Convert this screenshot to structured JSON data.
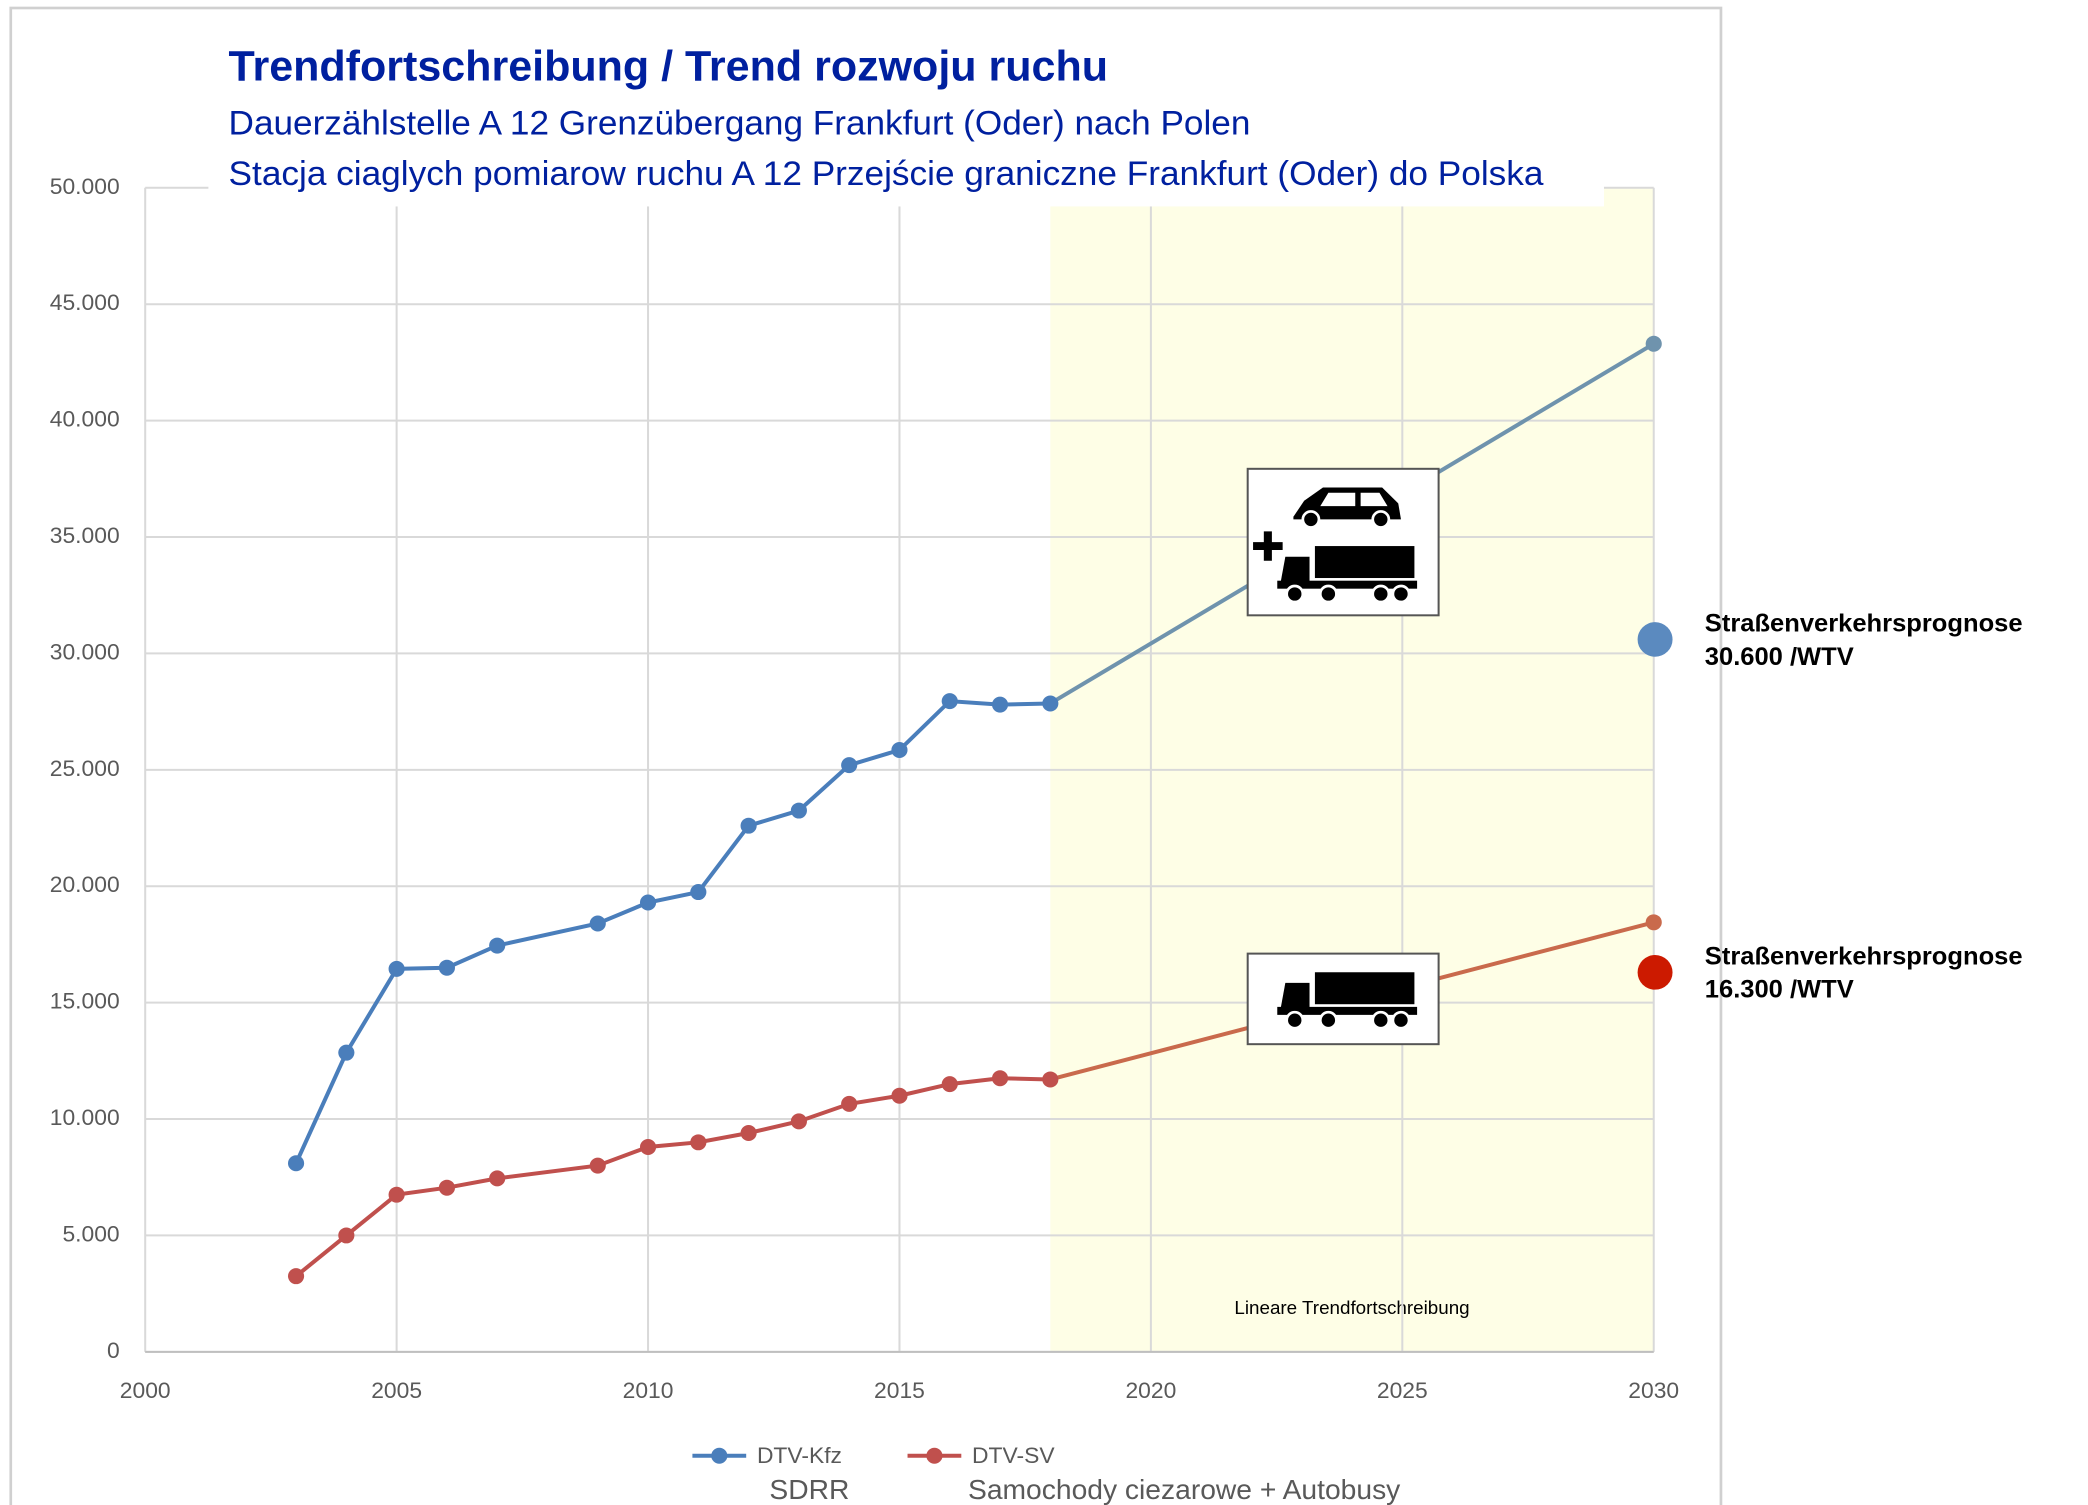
{
  "chart_data": {
    "type": "line",
    "title": "Trendfortschreibung / Trend rozwoju ruchu",
    "subtitle": [
      "Dauerzählstelle A 12 Grenzübergang Frankfurt (Oder) nach Polen",
      "Stacja ciaglych pomiarow ruchu A 12 Przejście graniczne Frankfurt (Oder) do Polska"
    ],
    "x": [
      2003,
      2004,
      2005,
      2006,
      2007,
      2009,
      2010,
      2011,
      2012,
      2013,
      2014,
      2015,
      2016,
      2017,
      2018,
      2030
    ],
    "series": [
      {
        "name": "DTV-Kfz",
        "sublabel": "SDRR",
        "color": "#4a7ebb",
        "trend_color": "#6f93ad",
        "values": [
          8100,
          12850,
          16450,
          16500,
          17450,
          18400,
          19300,
          19750,
          22600,
          23250,
          25200,
          25850,
          27950,
          27800,
          27850,
          43300
        ]
      },
      {
        "name": "DTV-SV",
        "sublabel": "Samochody ciezarowe + Autobusy",
        "color": "#c0504d",
        "trend_color": "#c96a4c",
        "values": [
          3250,
          5000,
          6750,
          7050,
          7450,
          8000,
          8800,
          9000,
          9400,
          9900,
          10650,
          11000,
          11500,
          11750,
          11700,
          18450
        ]
      }
    ],
    "forecast_region": {
      "range": [
        2018,
        2030
      ],
      "label": "Lineare Trendfortschreibung",
      "color": "#fefee6"
    },
    "annotations": [
      {
        "title": "Straßenverkehrsprognose",
        "x": 2030,
        "value": 30600,
        "label": "30.600 /WTV",
        "color": "#5b8abf"
      },
      {
        "title": "Straßenverkehrsprognose",
        "x": 2030,
        "value": 16300,
        "label": "16.300 /WTV",
        "color": "#cc1a00"
      }
    ],
    "xlim": [
      2000,
      2030
    ],
    "xticks": [
      2000,
      2005,
      2010,
      2015,
      2020,
      2025,
      2030
    ],
    "ylim": [
      0,
      50000
    ],
    "yticks": [
      0,
      {
        "value": 5000,
        "label": "5.000"
      },
      {
        "value": 10000,
        "label": "10.000"
      },
      {
        "value": 15000,
        "label": "15.000"
      },
      {
        "value": 20000,
        "label": "20.000"
      },
      {
        "value": 25000,
        "label": "25.000"
      },
      {
        "value": 30000,
        "label": "30.000"
      },
      {
        "value": 35000,
        "label": "35.000"
      },
      {
        "value": 40000,
        "label": "40.000"
      },
      {
        "value": 45000,
        "label": "45.000"
      },
      {
        "value": 50000,
        "label": "50.000"
      }
    ],
    "grid": true
  }
}
